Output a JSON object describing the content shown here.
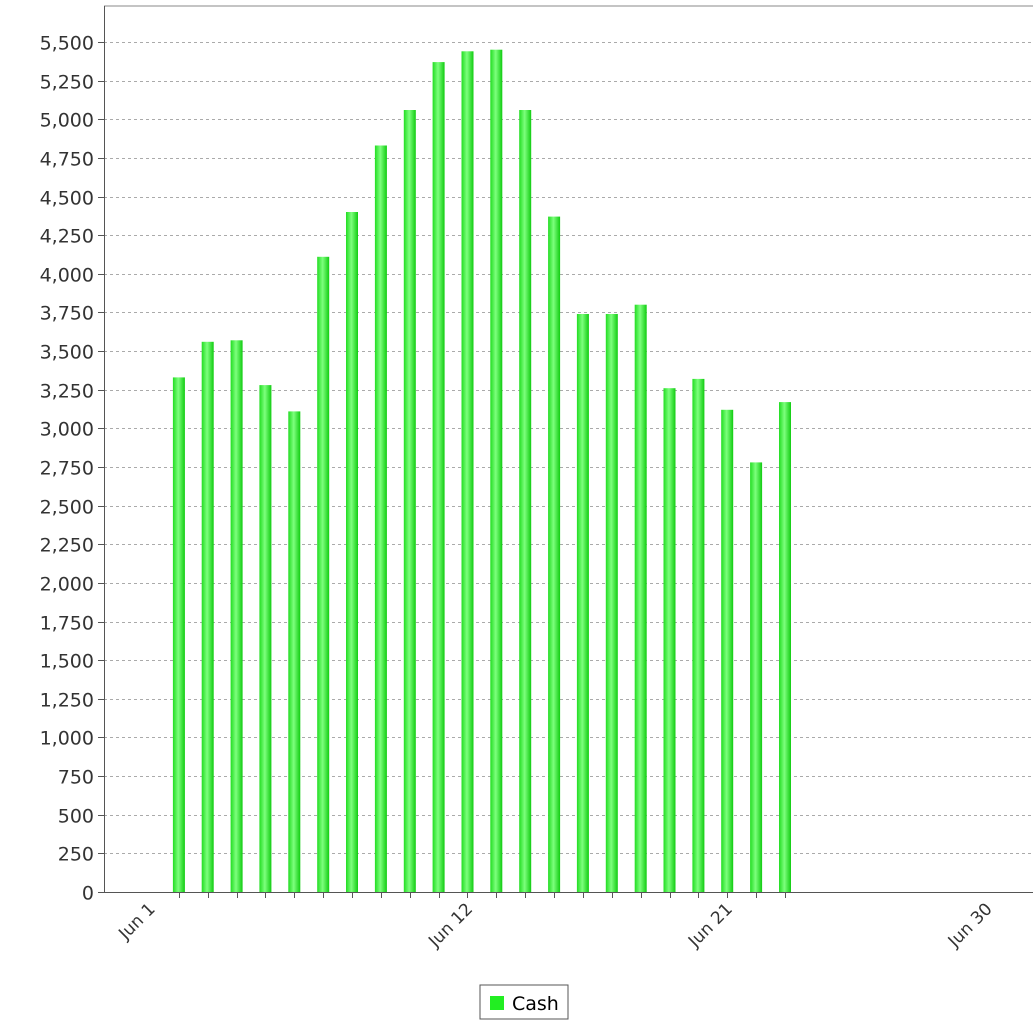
{
  "chart_data": {
    "type": "bar",
    "title": "",
    "xlabel": "",
    "ylabel": "",
    "ylim": [
      0,
      5500
    ],
    "y_ticks": [
      0,
      250,
      500,
      750,
      1000,
      1250,
      1500,
      1750,
      2000,
      2250,
      2500,
      2750,
      3000,
      3250,
      3500,
      3750,
      4000,
      4250,
      4500,
      4750,
      5000,
      5250,
      5500
    ],
    "y_tick_labels": [
      "0",
      "250",
      "500",
      "750",
      "1,000",
      "1,250",
      "1,500",
      "1,750",
      "2,000",
      "2,250",
      "2,500",
      "2,750",
      "3,000",
      "3,250",
      "3,500",
      "3,750",
      "4,000",
      "4,250",
      "4,500",
      "4,750",
      "5,000",
      "5,250",
      "5,500"
    ],
    "x_tick_labels": [
      {
        "label": "Jun 1",
        "date": "2000-06-01"
      },
      {
        "label": "Jun 12",
        "date": "2000-06-12"
      },
      {
        "label": "Jun 21",
        "date": "2000-06-21"
      },
      {
        "label": "Jun 30",
        "date": "2000-06-30"
      }
    ],
    "grid": true,
    "legend_position": "bottom-center",
    "series": [
      {
        "name": "Cash",
        "color": "#22ee22",
        "points": [
          {
            "date": "2000-06-02",
            "value": 3330
          },
          {
            "date": "2000-06-03",
            "value": 3560
          },
          {
            "date": "2000-06-04",
            "value": 3570
          },
          {
            "date": "2000-06-05",
            "value": 3280
          },
          {
            "date": "2000-06-06",
            "value": 3110
          },
          {
            "date": "2000-06-07",
            "value": 4110
          },
          {
            "date": "2000-06-08",
            "value": 4400
          },
          {
            "date": "2000-06-09",
            "value": 4830
          },
          {
            "date": "2000-06-10",
            "value": 5060
          },
          {
            "date": "2000-06-11",
            "value": 5370
          },
          {
            "date": "2000-06-12",
            "value": 5440
          },
          {
            "date": "2000-06-13",
            "value": 5450
          },
          {
            "date": "2000-06-14",
            "value": 5060
          },
          {
            "date": "2000-06-15",
            "value": 4370
          },
          {
            "date": "2000-06-16",
            "value": 3740
          },
          {
            "date": "2000-06-17",
            "value": 3740
          },
          {
            "date": "2000-06-18",
            "value": 3800
          },
          {
            "date": "2000-06-19",
            "value": 3260
          },
          {
            "date": "2000-06-20",
            "value": 3320
          },
          {
            "date": "2000-06-21",
            "value": 3120
          },
          {
            "date": "2000-06-22",
            "value": 2780
          },
          {
            "date": "2000-06-23",
            "value": 3170
          }
        ]
      }
    ]
  }
}
